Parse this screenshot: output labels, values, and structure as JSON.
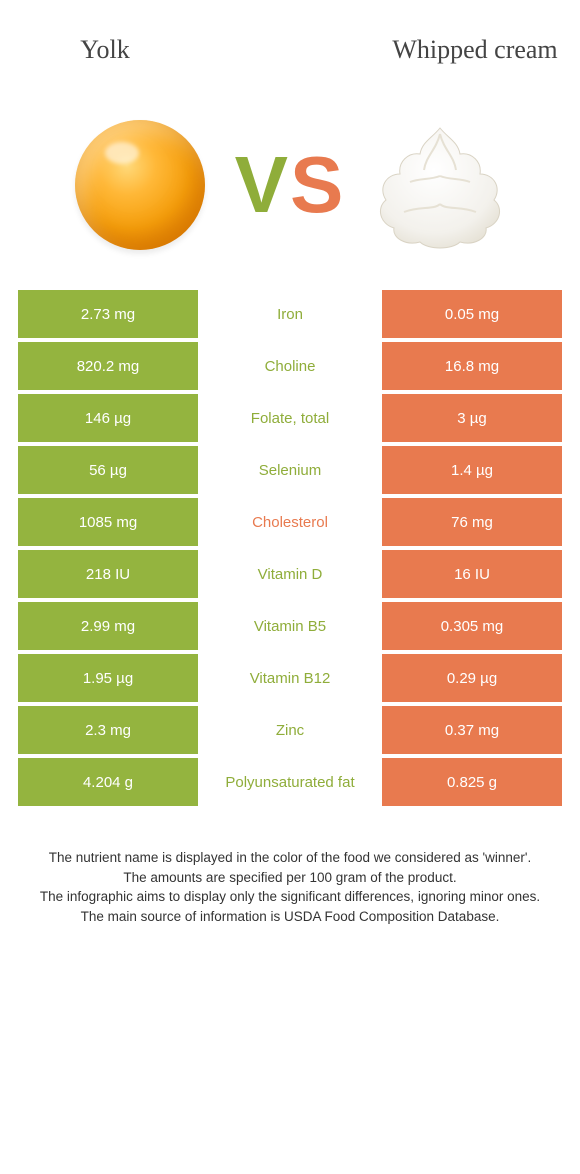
{
  "header": {
    "left_title": "Yolk",
    "right_title": "Whipped cream"
  },
  "vs": {
    "v": "V",
    "s": "S"
  },
  "colors": {
    "left_bg": "#94b43f",
    "right_bg": "#e87a4f",
    "left_text": "#8fad3a",
    "right_text": "#e87a4f",
    "row_gap": "#ffffff"
  },
  "rows": [
    {
      "left": "2.73 mg",
      "name": "Iron",
      "right": "0.05 mg",
      "winner": "left"
    },
    {
      "left": "820.2 mg",
      "name": "Choline",
      "right": "16.8 mg",
      "winner": "left"
    },
    {
      "left": "146 µg",
      "name": "Folate, total",
      "right": "3 µg",
      "winner": "left"
    },
    {
      "left": "56 µg",
      "name": "Selenium",
      "right": "1.4 µg",
      "winner": "left"
    },
    {
      "left": "1085 mg",
      "name": "Cholesterol",
      "right": "76 mg",
      "winner": "right"
    },
    {
      "left": "218 IU",
      "name": "Vitamin D",
      "right": "16 IU",
      "winner": "left"
    },
    {
      "left": "2.99 mg",
      "name": "Vitamin B5",
      "right": "0.305 mg",
      "winner": "left"
    },
    {
      "left": "1.95 µg",
      "name": "Vitamin B12",
      "right": "0.29 µg",
      "winner": "left"
    },
    {
      "left": "2.3 mg",
      "name": "Zinc",
      "right": "0.37 mg",
      "winner": "left"
    },
    {
      "left": "4.204 g",
      "name": "Polyunsaturated fat",
      "right": "0.825 g",
      "winner": "left"
    }
  ],
  "footer": {
    "l1": "The nutrient name is displayed in the color of the food we considered as 'winner'.",
    "l2": "The amounts are specified per 100 gram of the product.",
    "l3": "The infographic aims to display only the significant differences, ignoring minor ones.",
    "l4": "The main source of information is USDA Food Composition Database."
  }
}
